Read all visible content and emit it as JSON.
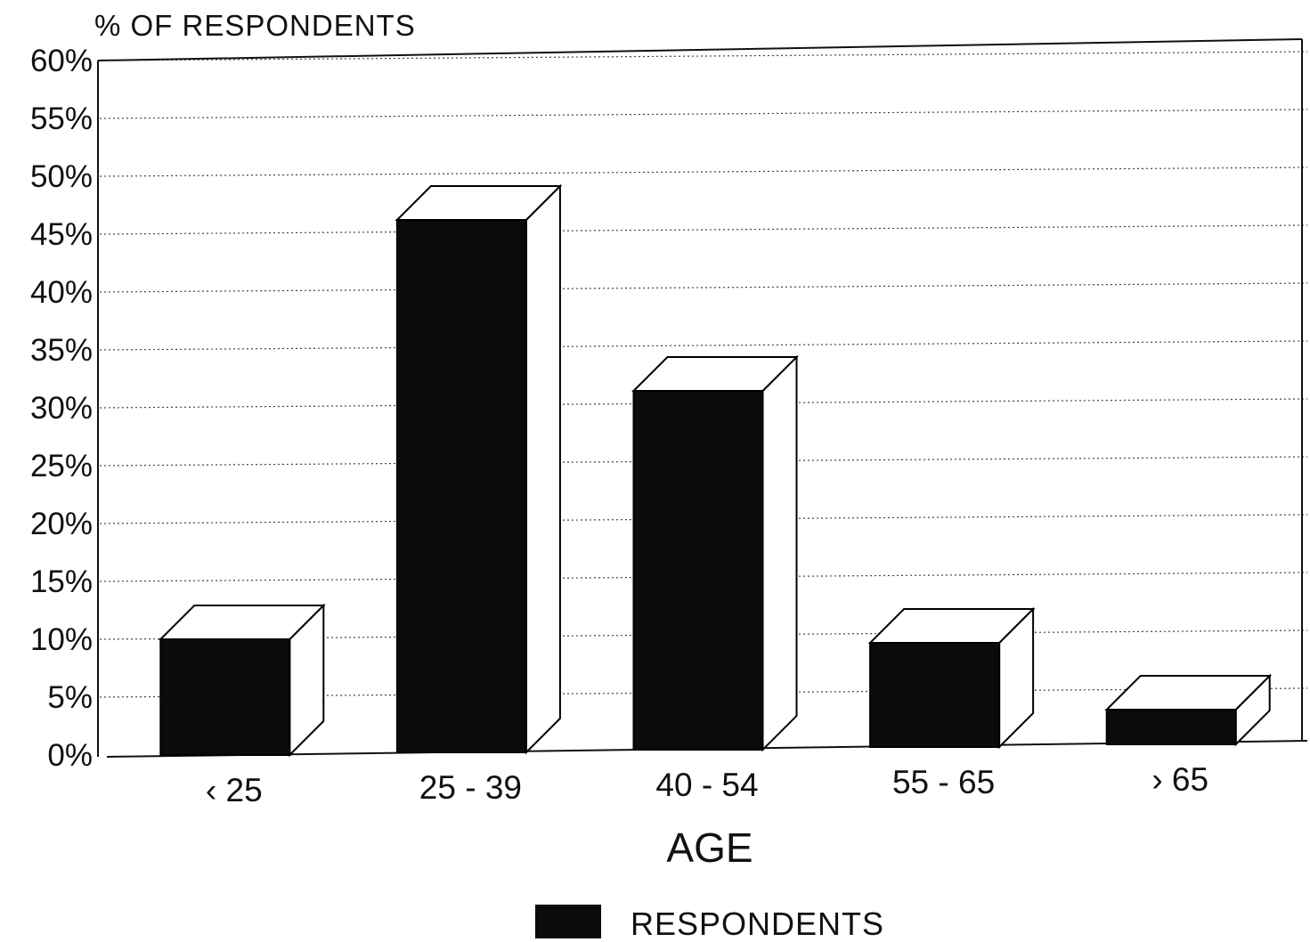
{
  "chart_data": {
    "type": "bar",
    "ylabel": "% OF RESPONDENTS",
    "xlabel": "AGE",
    "categories": [
      "‹ 25",
      "25 - 39",
      "40 - 54",
      "55 - 65",
      "› 65"
    ],
    "series": [
      {
        "name": "RESPONDENTS",
        "values": [
          10,
          46,
          31,
          9,
          3
        ]
      }
    ],
    "ylim": [
      0,
      60
    ],
    "yticks": [
      0,
      5,
      10,
      15,
      20,
      25,
      30,
      35,
      40,
      45,
      50,
      55,
      60
    ],
    "ytick_suffix": "%",
    "grid": true,
    "legend_position": "bottom-center",
    "colors": {
      "bar_front": "#0b0b0b",
      "bar_side": "#ffffff",
      "grid": "#444444"
    }
  }
}
